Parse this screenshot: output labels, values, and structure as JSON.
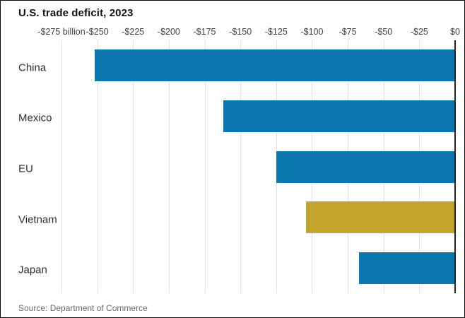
{
  "chart_data": {
    "type": "bar",
    "orientation": "horizontal",
    "title": "U.S. trade deficit, 2023",
    "source": "Source: Department of Commerce",
    "categories": [
      "China",
      "Mexico",
      "EU",
      "Vietnam",
      "Japan"
    ],
    "values": [
      -252,
      -162,
      -125,
      -104,
      -67
    ],
    "unit": "billion U.S. dollars",
    "xlim": [
      -275,
      0
    ],
    "x_ticks": [
      -275,
      -250,
      -225,
      -200,
      -175,
      -150,
      -125,
      -100,
      -75,
      -50,
      -25,
      0
    ],
    "x_tick_labels": [
      "-$275 billion",
      "-$250",
      "-$225",
      "-$200",
      "-$175",
      "-$150",
      "-$125",
      "-$100",
      "-$75",
      "-$50",
      "-$25",
      "$0"
    ],
    "highlight_category": "Vietnam",
    "grid": true,
    "legend": false,
    "colors": {
      "bar": "#0a77af",
      "highlight_bar": "#c3a42d",
      "gridline": "#e3e3e3",
      "zero_line": "#222222",
      "title_text": "#121212",
      "tick_text": "#404040",
      "category_text": "#2e2e2e",
      "source_text": "#6b6b6b",
      "background": "#ffffff"
    }
  }
}
